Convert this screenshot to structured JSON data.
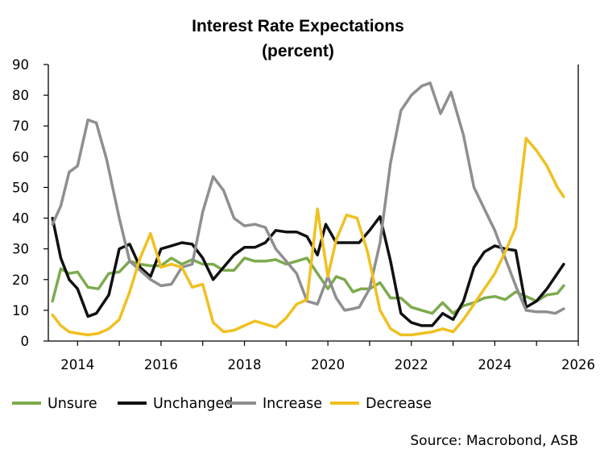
{
  "chart_data": {
    "type": "line",
    "title": "Interest Rate Expectations",
    "subtitle": "(percent)",
    "xlabel": "",
    "ylabel": "",
    "xlim": [
      2013.3,
      2026.0
    ],
    "ylim": [
      0,
      90
    ],
    "x_ticks": [
      "2014",
      "2016",
      "2018",
      "2020",
      "2022",
      "2024",
      "2026"
    ],
    "y_ticks": [
      "0",
      "10",
      "20",
      "30",
      "40",
      "50",
      "60",
      "70",
      "80",
      "90"
    ],
    "grid": false,
    "legend_position": "bottom",
    "source": "Source: Macrobond, ASB",
    "series": [
      {
        "name": "Unsure",
        "color": "#7daa4e",
        "points": [
          [
            2013.4,
            13
          ],
          [
            2013.6,
            23.5
          ],
          [
            2013.8,
            22
          ],
          [
            2014.0,
            22.5
          ],
          [
            2014.25,
            17.5
          ],
          [
            2014.5,
            17
          ],
          [
            2014.75,
            22
          ],
          [
            2015.0,
            22.5
          ],
          [
            2015.25,
            26
          ],
          [
            2015.5,
            25
          ],
          [
            2015.75,
            24.5
          ],
          [
            2016.0,
            24.5
          ],
          [
            2016.25,
            27
          ],
          [
            2016.5,
            25
          ],
          [
            2016.75,
            26.5
          ],
          [
            2017.0,
            25
          ],
          [
            2017.25,
            25
          ],
          [
            2017.5,
            23
          ],
          [
            2017.75,
            23
          ],
          [
            2018.0,
            27
          ],
          [
            2018.25,
            26
          ],
          [
            2018.5,
            26
          ],
          [
            2018.75,
            26.5
          ],
          [
            2019.0,
            25
          ],
          [
            2019.25,
            26
          ],
          [
            2019.5,
            27
          ],
          [
            2019.75,
            22
          ],
          [
            2020.0,
            17
          ],
          [
            2020.2,
            21
          ],
          [
            2020.4,
            20
          ],
          [
            2020.6,
            16
          ],
          [
            2020.8,
            17
          ],
          [
            2021.0,
            17
          ],
          [
            2021.25,
            19
          ],
          [
            2021.5,
            14
          ],
          [
            2021.75,
            14
          ],
          [
            2022.0,
            11
          ],
          [
            2022.25,
            10
          ],
          [
            2022.5,
            9
          ],
          [
            2022.75,
            12.5
          ],
          [
            2023.0,
            9
          ],
          [
            2023.25,
            11.5
          ],
          [
            2023.5,
            12.5
          ],
          [
            2023.75,
            14
          ],
          [
            2024.0,
            14.5
          ],
          [
            2024.25,
            13.5
          ],
          [
            2024.5,
            16
          ],
          [
            2024.75,
            14.5
          ],
          [
            2025.0,
            13
          ],
          [
            2025.25,
            15
          ],
          [
            2025.5,
            15.5
          ],
          [
            2025.65,
            18
          ]
        ]
      },
      {
        "name": "Unchanged",
        "color": "#111111",
        "points": [
          [
            2013.4,
            40
          ],
          [
            2013.6,
            27
          ],
          [
            2013.8,
            20
          ],
          [
            2014.0,
            17
          ],
          [
            2014.25,
            8
          ],
          [
            2014.45,
            9
          ],
          [
            2014.75,
            15
          ],
          [
            2015.0,
            30
          ],
          [
            2015.25,
            31.5
          ],
          [
            2015.5,
            24
          ],
          [
            2015.75,
            21
          ],
          [
            2016.0,
            30
          ],
          [
            2016.25,
            31
          ],
          [
            2016.5,
            32
          ],
          [
            2016.75,
            31.5
          ],
          [
            2017.0,
            27
          ],
          [
            2017.25,
            20
          ],
          [
            2017.5,
            24
          ],
          [
            2017.75,
            28
          ],
          [
            2018.0,
            30.5
          ],
          [
            2018.25,
            30.5
          ],
          [
            2018.5,
            32
          ],
          [
            2018.75,
            36
          ],
          [
            2019.0,
            35.5
          ],
          [
            2019.25,
            35.5
          ],
          [
            2019.5,
            34
          ],
          [
            2019.75,
            28
          ],
          [
            2019.95,
            38
          ],
          [
            2020.2,
            32
          ],
          [
            2020.5,
            32
          ],
          [
            2020.75,
            32
          ],
          [
            2021.0,
            36
          ],
          [
            2021.25,
            40.5
          ],
          [
            2021.5,
            26
          ],
          [
            2021.75,
            9
          ],
          [
            2022.0,
            6
          ],
          [
            2022.25,
            5
          ],
          [
            2022.5,
            5
          ],
          [
            2022.75,
            9
          ],
          [
            2023.0,
            7
          ],
          [
            2023.25,
            13
          ],
          [
            2023.5,
            24
          ],
          [
            2023.75,
            29
          ],
          [
            2024.0,
            31
          ],
          [
            2024.25,
            30
          ],
          [
            2024.5,
            29.5
          ],
          [
            2024.75,
            11
          ],
          [
            2025.0,
            13
          ],
          [
            2025.25,
            17
          ],
          [
            2025.45,
            21
          ],
          [
            2025.65,
            25
          ]
        ]
      },
      {
        "name": "Increase",
        "color": "#8f8f8f",
        "points": [
          [
            2013.4,
            38
          ],
          [
            2013.6,
            44
          ],
          [
            2013.8,
            55
          ],
          [
            2014.0,
            57
          ],
          [
            2014.25,
            72
          ],
          [
            2014.45,
            71
          ],
          [
            2014.7,
            59
          ],
          [
            2015.0,
            40
          ],
          [
            2015.25,
            26
          ],
          [
            2015.5,
            23
          ],
          [
            2015.75,
            20
          ],
          [
            2016.0,
            18
          ],
          [
            2016.25,
            18.5
          ],
          [
            2016.5,
            24
          ],
          [
            2016.75,
            25
          ],
          [
            2017.0,
            42
          ],
          [
            2017.25,
            53.5
          ],
          [
            2017.5,
            49
          ],
          [
            2017.75,
            40
          ],
          [
            2018.0,
            37.5
          ],
          [
            2018.25,
            38
          ],
          [
            2018.5,
            37
          ],
          [
            2018.75,
            30
          ],
          [
            2019.0,
            26
          ],
          [
            2019.25,
            22
          ],
          [
            2019.5,
            13
          ],
          [
            2019.75,
            12
          ],
          [
            2020.0,
            21
          ],
          [
            2020.2,
            14
          ],
          [
            2020.4,
            10
          ],
          [
            2020.6,
            10.5
          ],
          [
            2020.75,
            11
          ],
          [
            2021.0,
            17
          ],
          [
            2021.25,
            32
          ],
          [
            2021.5,
            58
          ],
          [
            2021.75,
            75
          ],
          [
            2022.0,
            80
          ],
          [
            2022.25,
            83
          ],
          [
            2022.45,
            84
          ],
          [
            2022.7,
            74
          ],
          [
            2022.95,
            81
          ],
          [
            2023.25,
            67
          ],
          [
            2023.5,
            50
          ],
          [
            2023.75,
            43
          ],
          [
            2024.0,
            36
          ],
          [
            2024.25,
            27
          ],
          [
            2024.5,
            18
          ],
          [
            2024.75,
            10
          ],
          [
            2025.0,
            9.5
          ],
          [
            2025.25,
            9.5
          ],
          [
            2025.45,
            9
          ],
          [
            2025.65,
            10.5
          ]
        ]
      },
      {
        "name": "Decrease",
        "color": "#f0c020",
        "points": [
          [
            2013.4,
            8.5
          ],
          [
            2013.6,
            5
          ],
          [
            2013.8,
            3
          ],
          [
            2014.0,
            2.5
          ],
          [
            2014.25,
            2
          ],
          [
            2014.5,
            2.5
          ],
          [
            2014.75,
            4
          ],
          [
            2015.0,
            7
          ],
          [
            2015.25,
            16
          ],
          [
            2015.5,
            27
          ],
          [
            2015.75,
            35
          ],
          [
            2016.0,
            24
          ],
          [
            2016.25,
            25
          ],
          [
            2016.5,
            24
          ],
          [
            2016.75,
            17.5
          ],
          [
            2017.0,
            18.5
          ],
          [
            2017.25,
            6
          ],
          [
            2017.5,
            3
          ],
          [
            2017.75,
            3.5
          ],
          [
            2018.0,
            5
          ],
          [
            2018.25,
            6.5
          ],
          [
            2018.5,
            5.5
          ],
          [
            2018.75,
            4.5
          ],
          [
            2019.0,
            7.5
          ],
          [
            2019.25,
            12
          ],
          [
            2019.5,
            13.5
          ],
          [
            2019.75,
            43
          ],
          [
            2020.0,
            21
          ],
          [
            2020.2,
            33
          ],
          [
            2020.45,
            41
          ],
          [
            2020.7,
            40
          ],
          [
            2020.95,
            29
          ],
          [
            2021.25,
            10
          ],
          [
            2021.5,
            4
          ],
          [
            2021.75,
            2
          ],
          [
            2022.0,
            2
          ],
          [
            2022.25,
            2.5
          ],
          [
            2022.5,
            3
          ],
          [
            2022.75,
            4
          ],
          [
            2023.0,
            3
          ],
          [
            2023.25,
            7
          ],
          [
            2023.5,
            12
          ],
          [
            2023.75,
            17
          ],
          [
            2024.0,
            22
          ],
          [
            2024.25,
            29
          ],
          [
            2024.5,
            37
          ],
          [
            2024.75,
            66
          ],
          [
            2025.0,
            62
          ],
          [
            2025.25,
            57
          ],
          [
            2025.5,
            50
          ],
          [
            2025.65,
            47
          ]
        ]
      }
    ]
  }
}
